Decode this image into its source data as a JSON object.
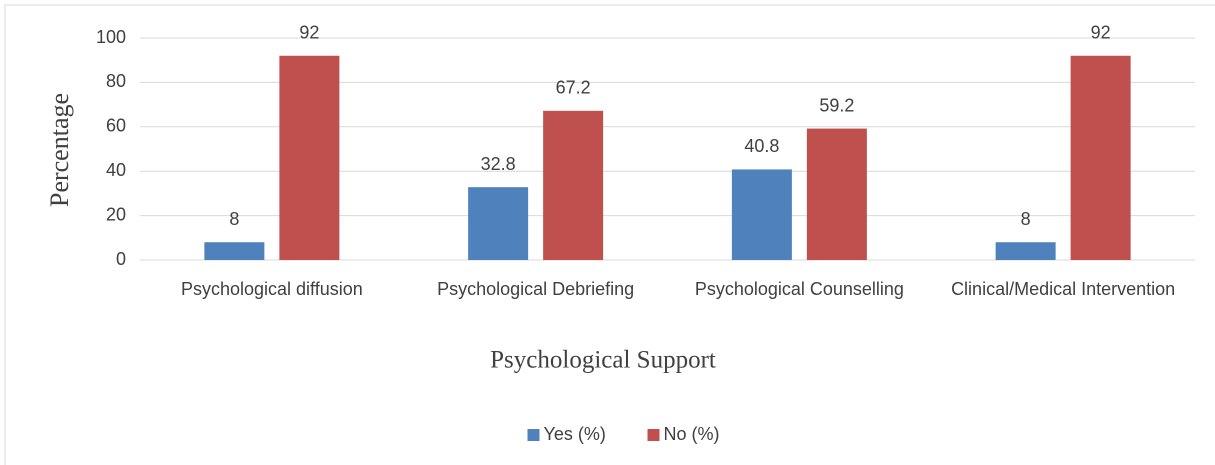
{
  "chart_data": {
    "type": "bar",
    "categories": [
      "Psychological diffusion",
      "Psychological Debriefing",
      "Psychological Counselling",
      "Clinical/Medical Intervention"
    ],
    "series": [
      {
        "name": "Yes (%)",
        "color": "#4f81bd",
        "values": [
          8,
          32.8,
          40.8,
          8
        ]
      },
      {
        "name": "No (%)",
        "color": "#c0504d",
        "values": [
          92,
          67.2,
          59.2,
          92
        ]
      }
    ],
    "ylabel": "Percentage",
    "xlabel": "Psychological Support",
    "ylim": [
      0,
      100
    ],
    "yticks": [
      0,
      20,
      40,
      60,
      80,
      100
    ],
    "grid": true,
    "legend": "bottom"
  }
}
